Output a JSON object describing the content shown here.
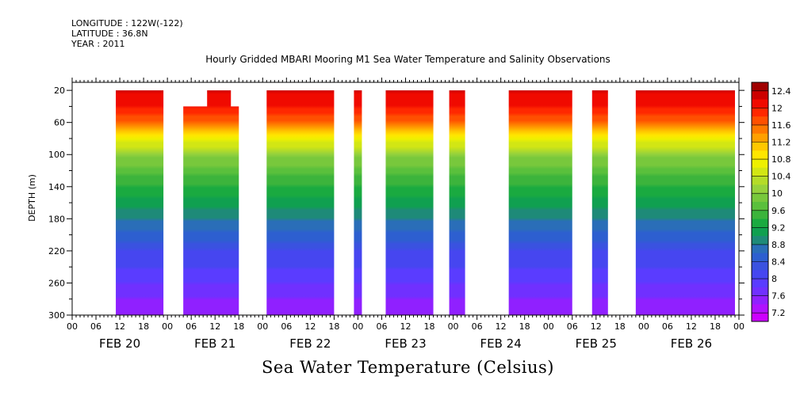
{
  "meta": {
    "longitude": "LONGITUDE : 122W(-122)",
    "latitude": "LATITUDE : 36.8N",
    "year": "YEAR : 2011"
  },
  "chart_data": {
    "type": "heatmap",
    "title": "Hourly Gridded MBARI Mooring M1 Sea Water Temperature and Salinity Observations",
    "xlabel": "Sea Water Temperature (Celsius)",
    "ylabel": "DEPTH (m)",
    "xlim": [
      "2011-02-20T00:00",
      "2011-02-27T00:00"
    ],
    "ylim": [
      300,
      10
    ],
    "y_reversed": true,
    "y_ticks": [
      20,
      60,
      100,
      140,
      180,
      220,
      260,
      300
    ],
    "hour_tick_labels": [
      "00",
      "06",
      "12",
      "18",
      "00",
      "06",
      "12",
      "18",
      "00",
      "06",
      "12",
      "18",
      "00",
      "06",
      "12",
      "18",
      "00",
      "06",
      "12",
      "18",
      "00",
      "06",
      "12",
      "18",
      "00",
      "06",
      "12",
      "18",
      "00"
    ],
    "day_labels": [
      "FEB 20",
      "FEB 21",
      "FEB 22",
      "FEB 23",
      "FEB 24",
      "FEB 25",
      "FEB 26"
    ],
    "colorbar": {
      "levels": [
        7.2,
        7.4,
        7.6,
        7.8,
        8.0,
        8.2,
        8.4,
        8.6,
        8.8,
        9.0,
        9.2,
        9.4,
        9.6,
        9.8,
        10.0,
        10.2,
        10.4,
        10.6,
        10.8,
        11.0,
        11.2,
        11.4,
        11.6,
        11.8,
        12.0,
        12.2,
        12.4
      ],
      "labels": [
        "12.4",
        "12",
        "11.6",
        "11.2",
        "10.8",
        "10.4",
        "10",
        "9.6",
        "9.2",
        "8.8",
        "8.4",
        "8",
        "7.6",
        "7.2"
      ],
      "colors": [
        "#cc00ff",
        "#b012ff",
        "#9020ff",
        "#7030ff",
        "#5a3cff",
        "#4646f0",
        "#3a52e0",
        "#2d5fd0",
        "#2a6eb8",
        "#1e8a78",
        "#10a050",
        "#1aaa40",
        "#3cb43c",
        "#5ac03c",
        "#78c83c",
        "#96d23c",
        "#b4dc28",
        "#d2e614",
        "#eef000",
        "#ffe600",
        "#ffc800",
        "#ffa000",
        "#ff7800",
        "#ff5000",
        "#ff2800",
        "#f00a00",
        "#cc0000",
        "#a00000"
      ]
    },
    "data_segments": [
      {
        "start": "2011-02-20T11:00",
        "end": "2011-02-20T23:00",
        "top_depth": 20
      },
      {
        "start": "2011-02-21T04:00",
        "end": "2011-02-21T18:00",
        "top_depth": 40
      },
      {
        "start": "2011-02-22T01:00",
        "end": "2011-02-22T18:00",
        "top_depth": 20
      },
      {
        "start": "2011-02-22T23:00",
        "end": "2011-02-23T01:00",
        "top_depth": 20
      },
      {
        "start": "2011-02-23T07:00",
        "end": "2011-02-23T19:00",
        "top_depth": 20
      },
      {
        "start": "2011-02-23T23:00",
        "end": "2011-02-24T03:00",
        "top_depth": 20
      },
      {
        "start": "2011-02-24T14:00",
        "end": "2011-02-25T06:00",
        "top_depth": 20
      },
      {
        "start": "2011-02-25T11:00",
        "end": "2011-02-25T15:00",
        "top_depth": 20
      },
      {
        "start": "2011-02-25T22:00",
        "end": "2011-02-26T23:00",
        "top_depth": 20
      }
    ],
    "top_notch": {
      "start": "2011-02-21T10:00",
      "end": "2011-02-21T16:00",
      "top_depth": 20
    },
    "profile": [
      {
        "depth": 20,
        "temp": 12.2
      },
      {
        "depth": 40,
        "temp": 12.0
      },
      {
        "depth": 60,
        "temp": 11.6
      },
      {
        "depth": 80,
        "temp": 10.8
      },
      {
        "depth": 100,
        "temp": 10.0
      },
      {
        "depth": 140,
        "temp": 9.4
      },
      {
        "depth": 180,
        "temp": 8.8
      },
      {
        "depth": 220,
        "temp": 8.2
      },
      {
        "depth": 260,
        "temp": 7.8
      },
      {
        "depth": 300,
        "temp": 7.4
      }
    ]
  }
}
